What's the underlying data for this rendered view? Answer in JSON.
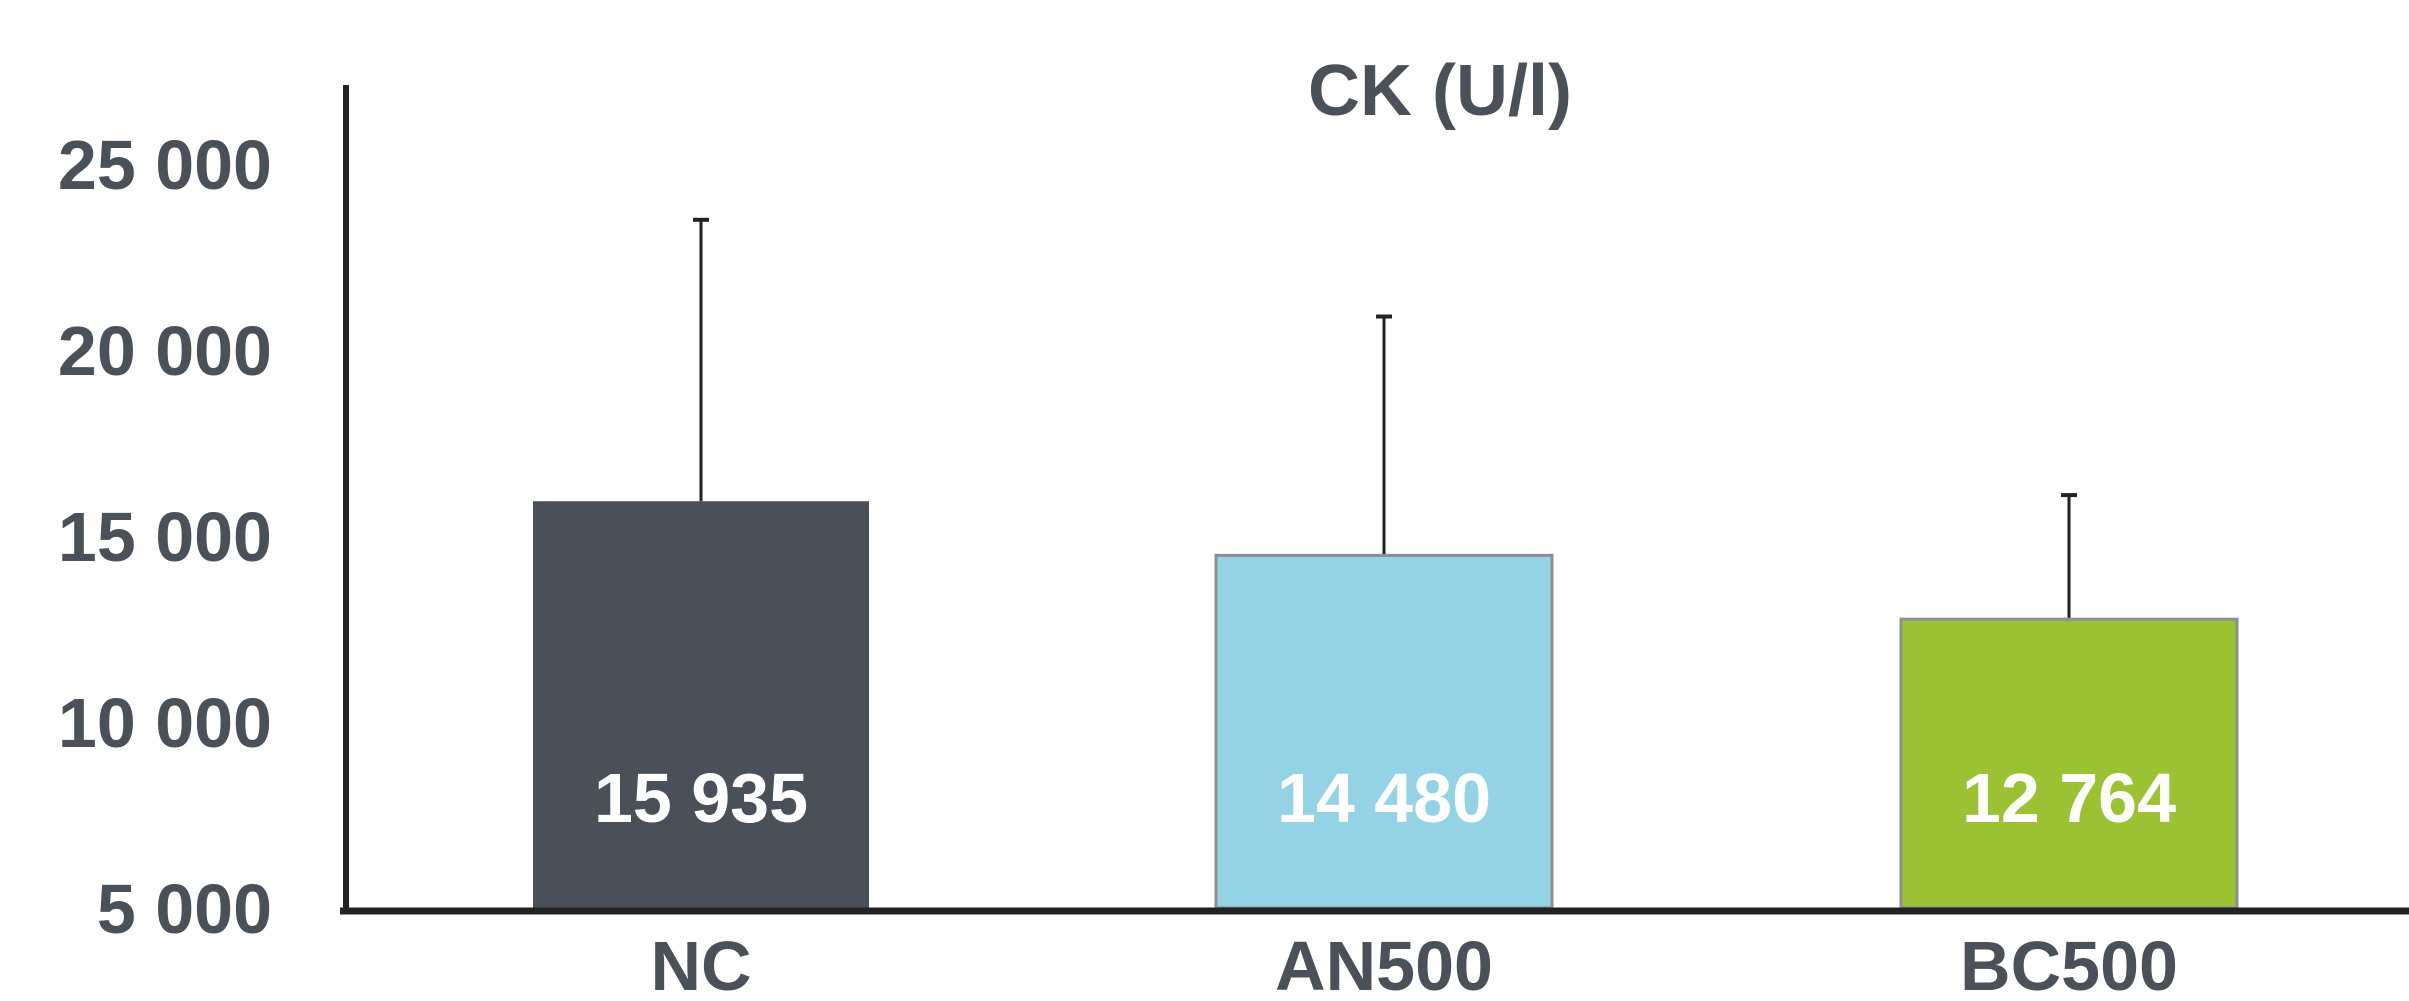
{
  "chart_data": {
    "type": "bar",
    "title": "CK (U/l)",
    "categories": [
      "NC",
      "AN500",
      "BC500"
    ],
    "values": [
      15935,
      14480,
      12764
    ],
    "value_labels": [
      "15 935",
      "14 480",
      "12 764"
    ],
    "error_upper": [
      23500,
      20900,
      16100
    ],
    "ylim": [
      5000,
      27500
    ],
    "yticks": [
      5000,
      10000,
      15000,
      20000,
      25000
    ],
    "ytick_labels": [
      "5 000",
      "10 000",
      "15 000",
      "20 000",
      "25 000"
    ],
    "colors": [
      "#495057",
      "#93d3e5",
      "#9bc232"
    ],
    "grid": false,
    "legend": "none"
  }
}
